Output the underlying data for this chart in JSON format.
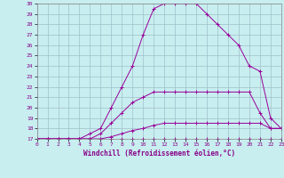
{
  "xlabel": "Windchill (Refroidissement éolien,°C)",
  "bg_color": "#c8eef0",
  "line_color": "#990099",
  "xlim": [
    0,
    23
  ],
  "ylim": [
    17,
    30
  ],
  "yticks": [
    17,
    18,
    19,
    20,
    21,
    22,
    23,
    24,
    25,
    26,
    27,
    28,
    29,
    30
  ],
  "xticks": [
    0,
    1,
    2,
    3,
    4,
    5,
    6,
    7,
    8,
    9,
    10,
    11,
    12,
    13,
    14,
    15,
    16,
    17,
    18,
    19,
    20,
    21,
    22,
    23
  ],
  "grid_color": "#a0c0c8",
  "curves": [
    {
      "x": [
        0,
        1,
        2,
        3,
        4,
        5,
        6,
        7,
        8,
        9,
        10,
        11,
        12,
        13,
        14,
        15,
        16,
        17,
        18,
        19,
        20,
        21,
        22,
        23
      ],
      "y": [
        17,
        17,
        17,
        17,
        17,
        17,
        17,
        17,
        17,
        17,
        17,
        17,
        17,
        17,
        17,
        17,
        17,
        17,
        17,
        17,
        17,
        17,
        17,
        17
      ]
    },
    {
      "x": [
        0,
        1,
        2,
        3,
        4,
        5,
        6,
        7,
        8,
        9,
        10,
        11,
        12,
        13,
        14,
        15,
        16,
        17,
        18,
        19,
        20,
        21,
        22,
        23
      ],
      "y": [
        17,
        17,
        17,
        17,
        17,
        17,
        17,
        17.2,
        17.5,
        17.8,
        18,
        18.3,
        18.5,
        18.5,
        18.5,
        18.5,
        18.5,
        18.5,
        18.5,
        18.5,
        18.5,
        18.5,
        18,
        18
      ]
    },
    {
      "x": [
        0,
        1,
        2,
        3,
        4,
        5,
        6,
        7,
        8,
        9,
        10,
        11,
        12,
        13,
        14,
        15,
        16,
        17,
        18,
        19,
        20,
        21,
        22,
        23
      ],
      "y": [
        17,
        17,
        17,
        17,
        17,
        17,
        17.5,
        18.5,
        19.5,
        20.5,
        21,
        21.5,
        21.5,
        21.5,
        21.5,
        21.5,
        21.5,
        21.5,
        21.5,
        21.5,
        21.5,
        19.5,
        18,
        18
      ]
    },
    {
      "x": [
        0,
        1,
        2,
        3,
        4,
        5,
        6,
        7,
        8,
        9,
        10,
        11,
        12,
        13,
        14,
        15,
        16,
        17,
        18,
        19,
        20,
        21,
        22,
        23
      ],
      "y": [
        17,
        17,
        17,
        17,
        17,
        17.5,
        18,
        20,
        22,
        24,
        27,
        29.5,
        30,
        30,
        30,
        30,
        29,
        28,
        27,
        26,
        24,
        23.5,
        19,
        18
      ]
    }
  ],
  "marker": "+"
}
